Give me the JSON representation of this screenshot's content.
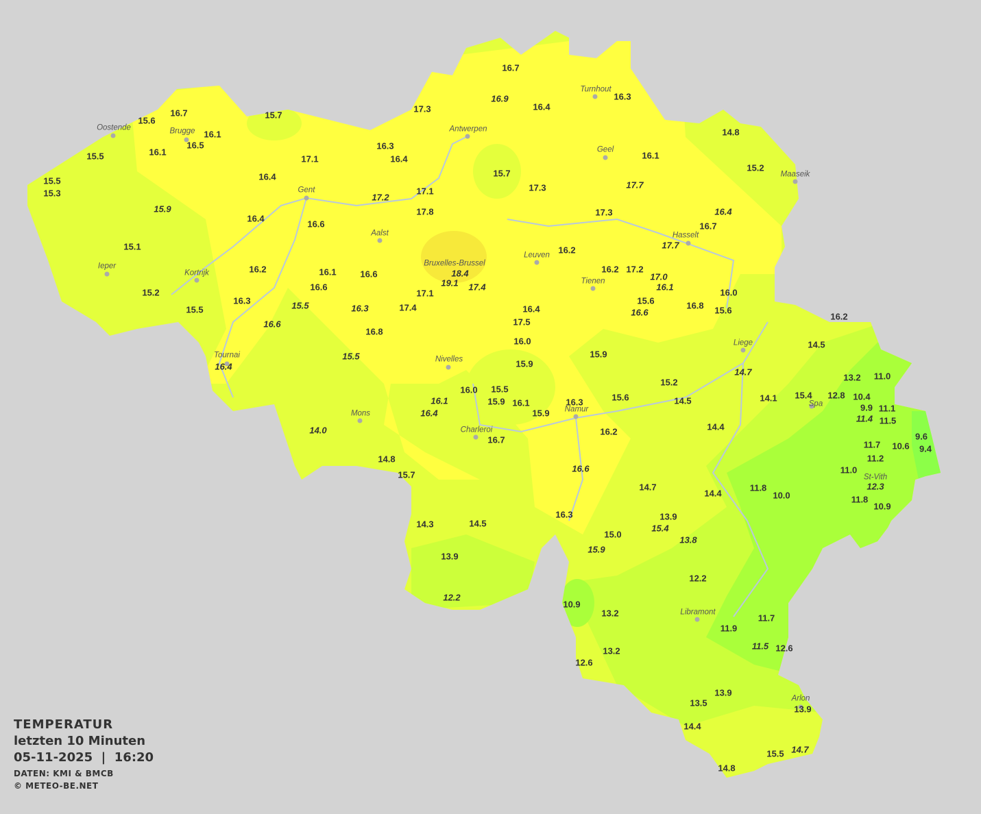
{
  "legend": {
    "title": "TEMPERATUR",
    "period": "letzten 10 Minuten",
    "datetime": "05-11-2025  |  16:20",
    "source": "DATEN: KMI & BMCB",
    "copyright": "© METEO-BE.NET"
  },
  "colors": {
    "background": "#d3d3d3",
    "zone_14_15": "#e4ff3c",
    "zone_16_17": "#ffff40",
    "zone_18_19": "#f7e93a",
    "zone_12_13": "#ccff3a",
    "zone_10_11": "#aaff3a",
    "zone_9": "#8cff48",
    "text": "#333333"
  },
  "cities": [
    {
      "name": "Oostende"
    },
    {
      "name": "Brugge"
    },
    {
      "name": "Antwerpen"
    },
    {
      "name": "Turnhout"
    },
    {
      "name": "Geel"
    },
    {
      "name": "Maaseik"
    },
    {
      "name": "Gent"
    },
    {
      "name": "Hasselt"
    },
    {
      "name": "Aalst"
    },
    {
      "name": "Leuven"
    },
    {
      "name": "Bruxelles-Brussel"
    },
    {
      "name": "Ieper"
    },
    {
      "name": "Kortrijk"
    },
    {
      "name": "Tienen"
    },
    {
      "name": "Liege"
    },
    {
      "name": "Tournai"
    },
    {
      "name": "Nivelles"
    },
    {
      "name": "Spa"
    },
    {
      "name": "Mons"
    },
    {
      "name": "Charleroi"
    },
    {
      "name": "Namur"
    },
    {
      "name": "St-Vith"
    },
    {
      "name": "Libramont"
    },
    {
      "name": "Arlon"
    }
  ],
  "stations": [
    {
      "value": "16.7"
    },
    {
      "value": "16.9",
      "italic": true
    },
    {
      "value": "16.4"
    },
    {
      "value": "16.3"
    },
    {
      "value": "16.7"
    },
    {
      "value": "15.6"
    },
    {
      "value": "15.7"
    },
    {
      "value": "17.3"
    },
    {
      "value": "16.1"
    },
    {
      "value": "16.5"
    },
    {
      "value": "16.1"
    },
    {
      "value": "15.5"
    },
    {
      "value": "16.3"
    },
    {
      "value": "16.4"
    },
    {
      "value": "17.1"
    },
    {
      "value": "14.8"
    },
    {
      "value": "16.1"
    },
    {
      "value": "15.2"
    },
    {
      "value": "15.7"
    },
    {
      "value": "17.3"
    },
    {
      "value": "17.7",
      "italic": true
    },
    {
      "value": "16.4"
    },
    {
      "value": "15.5"
    },
    {
      "value": "15.3"
    },
    {
      "value": "17.1"
    },
    {
      "value": "17.2",
      "italic": true
    },
    {
      "value": "17.8"
    },
    {
      "value": "15.9",
      "italic": true
    },
    {
      "value": "17.3"
    },
    {
      "value": "16.4",
      "italic": true
    },
    {
      "value": "16.7"
    },
    {
      "value": "16.4"
    },
    {
      "value": "16.6"
    },
    {
      "value": "17.7",
      "italic": true
    },
    {
      "value": "15.1"
    },
    {
      "value": "16.2"
    },
    {
      "value": "16.2"
    },
    {
      "value": "16.1"
    },
    {
      "value": "16.2"
    },
    {
      "value": "17.2"
    },
    {
      "value": "18.4",
      "italic": true
    },
    {
      "value": "17.0",
      "italic": true
    },
    {
      "value": "19.1",
      "italic": true
    },
    {
      "value": "16.1",
      "italic": true
    },
    {
      "value": "17.4",
      "italic": true
    },
    {
      "value": "16.6"
    },
    {
      "value": "16.6"
    },
    {
      "value": "15.2"
    },
    {
      "value": "17.1"
    },
    {
      "value": "16.0"
    },
    {
      "value": "16.3"
    },
    {
      "value": "15.5",
      "italic": true
    },
    {
      "value": "15.6"
    },
    {
      "value": "16.3",
      "italic": true
    },
    {
      "value": "17.4"
    },
    {
      "value": "16.4"
    },
    {
      "value": "16.8"
    },
    {
      "value": "15.5"
    },
    {
      "value": "16.6",
      "italic": true
    },
    {
      "value": "15.6"
    },
    {
      "value": "16.6",
      "italic": true
    },
    {
      "value": "17.5"
    },
    {
      "value": "16.8"
    },
    {
      "value": "16.2"
    },
    {
      "value": "16.0"
    },
    {
      "value": "14.5"
    },
    {
      "value": "15.5",
      "italic": true
    },
    {
      "value": "15.9"
    },
    {
      "value": "16.4",
      "italic": true
    },
    {
      "value": "15.9"
    },
    {
      "value": "14.7",
      "italic": true
    },
    {
      "value": "13.2"
    },
    {
      "value": "11.0"
    },
    {
      "value": "15.2"
    },
    {
      "value": "16.0"
    },
    {
      "value": "15.5"
    },
    {
      "value": "14.1"
    },
    {
      "value": "15.4"
    },
    {
      "value": "12.8"
    },
    {
      "value": "15.6"
    },
    {
      "value": "14.5"
    },
    {
      "value": "15.9"
    },
    {
      "value": "16.1"
    },
    {
      "value": "10.4"
    },
    {
      "value": "16.1",
      "italic": true
    },
    {
      "value": "16.3"
    },
    {
      "value": "9.9"
    },
    {
      "value": "11.1"
    },
    {
      "value": "16.4",
      "italic": true
    },
    {
      "value": "15.9"
    },
    {
      "value": "11.4",
      "italic": true
    },
    {
      "value": "11.5"
    },
    {
      "value": "14.0",
      "italic": true
    },
    {
      "value": "14.4"
    },
    {
      "value": "16.2"
    },
    {
      "value": "9.6"
    },
    {
      "value": "11.7"
    },
    {
      "value": "10.6"
    },
    {
      "value": "9.4"
    },
    {
      "value": "16.7"
    },
    {
      "value": "11.2"
    },
    {
      "value": "14.8"
    },
    {
      "value": "16.6",
      "italic": true
    },
    {
      "value": "11.0"
    },
    {
      "value": "15.7"
    },
    {
      "value": "11.8"
    },
    {
      "value": "14.7"
    },
    {
      "value": "12.3",
      "italic": true
    },
    {
      "value": "10.0"
    },
    {
      "value": "14.4"
    },
    {
      "value": "11.8"
    },
    {
      "value": "10.9"
    },
    {
      "value": "16.3"
    },
    {
      "value": "13.9"
    },
    {
      "value": "14.3"
    },
    {
      "value": "14.5"
    },
    {
      "value": "15.4",
      "italic": true
    },
    {
      "value": "15.0"
    },
    {
      "value": "13.8",
      "italic": true
    },
    {
      "value": "15.9",
      "italic": true
    },
    {
      "value": "13.9"
    },
    {
      "value": "12.2"
    },
    {
      "value": "12.2",
      "italic": true
    },
    {
      "value": "10.9"
    },
    {
      "value": "13.2"
    },
    {
      "value": "11.7"
    },
    {
      "value": "11.9"
    },
    {
      "value": "11.5",
      "italic": true
    },
    {
      "value": "12.6"
    },
    {
      "value": "13.2"
    },
    {
      "value": "12.6"
    },
    {
      "value": "13.9"
    },
    {
      "value": "13.5"
    },
    {
      "value": "13.9"
    },
    {
      "value": "14.4"
    },
    {
      "value": "15.5"
    },
    {
      "value": "14.7",
      "italic": true
    },
    {
      "value": "14.8"
    }
  ]
}
